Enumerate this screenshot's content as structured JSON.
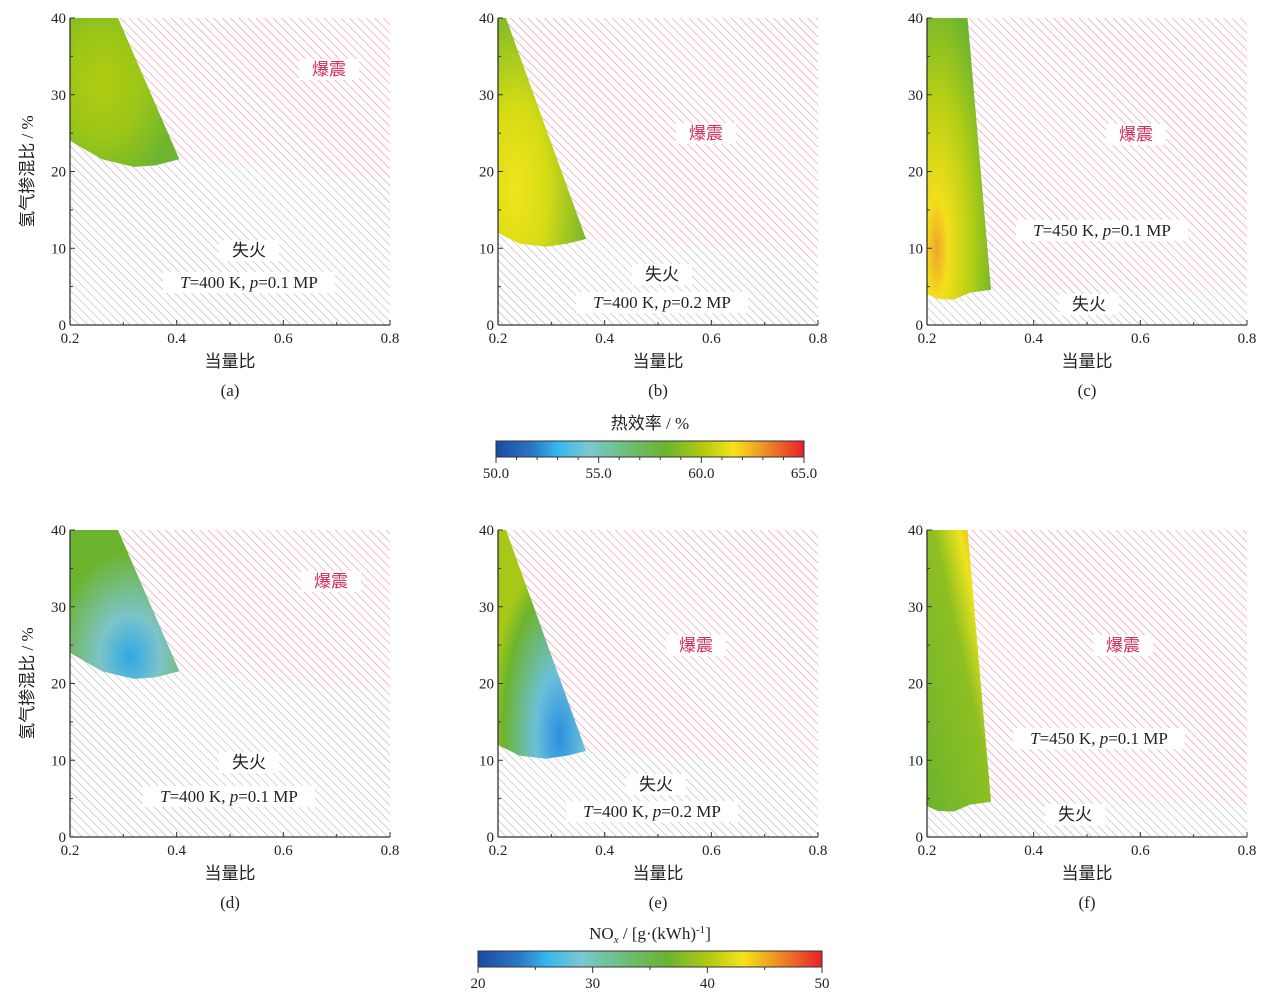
{
  "chart_data": {
    "type": "contour",
    "colorbars": [
      {
        "title": "热效率 / %",
        "ticks": [
          "50.0",
          "55.0",
          "60.0",
          "65.0"
        ],
        "range": [
          50,
          65
        ]
      },
      {
        "title_main": "NO",
        "title_sub": "x",
        "title_rest": " / [g·(kWh)",
        "title_sup": "-1",
        "title_end": "]",
        "ticks": [
          "20",
          "30",
          "40",
          "50"
        ],
        "range": [
          20,
          50
        ]
      }
    ],
    "panels": [
      {
        "label": "(a)",
        "metric": "thermal_efficiency",
        "condition_T": "T",
        "condition_mid": "=400 K, ",
        "condition_p": "p",
        "condition_end": "=0.1 MP",
        "feasible": [
          [
            0.2,
            40
          ],
          [
            0.29,
            40
          ],
          [
            0.405,
            21.6
          ],
          [
            0.36,
            20.8
          ],
          [
            0.32,
            20.6
          ],
          [
            0.26,
            21.6
          ],
          [
            0.2,
            24
          ]
        ],
        "boundary": [
          [
            0.405,
            21.6
          ],
          [
            0.5,
            21
          ],
          [
            0.6,
            20
          ],
          [
            0.8,
            19
          ]
        ]
      },
      {
        "label": "(b)",
        "metric": "thermal_efficiency",
        "condition_T": "T",
        "condition_mid": "=400 K, ",
        "condition_p": "p",
        "condition_end": "=0.2 MP",
        "feasible": [
          [
            0.2,
            40
          ],
          [
            0.215,
            40
          ],
          [
            0.365,
            11.2
          ],
          [
            0.33,
            10.6
          ],
          [
            0.29,
            10.2
          ],
          [
            0.24,
            10.6
          ],
          [
            0.2,
            12
          ]
        ],
        "boundary": [
          [
            0.365,
            11.2
          ],
          [
            0.5,
            10.5
          ],
          [
            0.8,
            9
          ]
        ]
      },
      {
        "label": "(c)",
        "metric": "thermal_efficiency",
        "condition_T": "T",
        "condition_mid": "=450 K, ",
        "condition_p": "p",
        "condition_end": "=0.1 MP",
        "feasible": [
          [
            0.2,
            40
          ],
          [
            0.276,
            40
          ],
          [
            0.32,
            4.6
          ],
          [
            0.28,
            4.2
          ],
          [
            0.25,
            3.3
          ],
          [
            0.22,
            3.4
          ],
          [
            0.2,
            4
          ]
        ],
        "boundary": [
          [
            0.32,
            4.6
          ],
          [
            0.8,
            4.3
          ]
        ]
      },
      {
        "label": "(d)",
        "metric": "nox",
        "condition_T": "T",
        "condition_mid": "=400 K, ",
        "condition_p": "p",
        "condition_end": "=0.1 MP",
        "feasible": [
          [
            0.2,
            40
          ],
          [
            0.29,
            40
          ],
          [
            0.405,
            21.6
          ],
          [
            0.36,
            20.8
          ],
          [
            0.32,
            20.6
          ],
          [
            0.26,
            21.6
          ],
          [
            0.2,
            24
          ]
        ],
        "boundary": [
          [
            0.405,
            21.6
          ],
          [
            0.5,
            21
          ],
          [
            0.6,
            20
          ],
          [
            0.8,
            19
          ]
        ]
      },
      {
        "label": "(e)",
        "metric": "nox",
        "condition_T": "T",
        "condition_mid": "=400 K, ",
        "condition_p": "p",
        "condition_end": "=0.2 MP",
        "feasible": [
          [
            0.2,
            40
          ],
          [
            0.215,
            40
          ],
          [
            0.365,
            11.2
          ],
          [
            0.33,
            10.6
          ],
          [
            0.29,
            10.2
          ],
          [
            0.24,
            10.6
          ],
          [
            0.2,
            12
          ]
        ],
        "boundary": [
          [
            0.365,
            11.2
          ],
          [
            0.5,
            10.5
          ],
          [
            0.8,
            9
          ]
        ]
      },
      {
        "label": "(f)",
        "metric": "nox",
        "condition_T": "T",
        "condition_mid": "=450 K, ",
        "condition_p": "p",
        "condition_end": "=0.1 MP",
        "feasible": [
          [
            0.2,
            40
          ],
          [
            0.276,
            40
          ],
          [
            0.32,
            4.6
          ],
          [
            0.28,
            4.2
          ],
          [
            0.25,
            3.3
          ],
          [
            0.22,
            3.4
          ],
          [
            0.2,
            4
          ]
        ],
        "boundary": [
          [
            0.32,
            4.6
          ],
          [
            0.8,
            4.3
          ]
        ]
      }
    ],
    "xlabel": "当量比",
    "ylabel": "氢气掺混比 / %",
    "knock_label": "爆震",
    "misfire_label": "失火",
    "xlim": [
      0.2,
      0.8
    ],
    "ylim": [
      0,
      40
    ],
    "xticks": [
      "0.2",
      "0.4",
      "0.6",
      "0.8"
    ],
    "yticks": [
      "0",
      "10",
      "20",
      "30",
      "40"
    ]
  }
}
